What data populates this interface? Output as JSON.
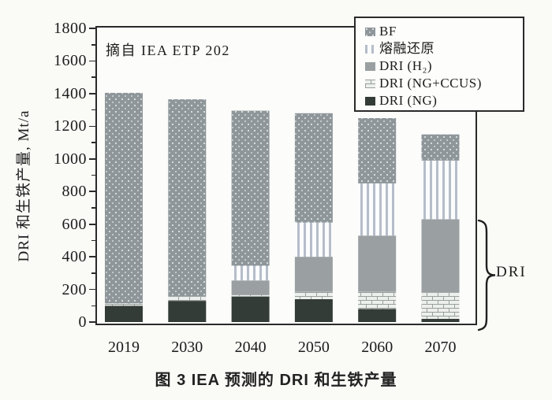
{
  "figure": {
    "source_note": "摘自 IEA ETP 202",
    "caption": "图 3  IEA 预测的 DRI 和生铁产量",
    "brace_label": "DRI"
  },
  "chart_data": {
    "type": "bar",
    "stacked": true,
    "title": "图 3  IEA 预测的 DRI 和生铁产量",
    "annotation": "摘自 IEA ETP 202",
    "xlabel": "",
    "ylabel": "DRI 和生铁产量, Mt/a",
    "ylim": [
      0,
      1800
    ],
    "ytick_step": 200,
    "ytick_minor_step": 100,
    "grid": false,
    "legend_position": "top-right",
    "categories": [
      "2019",
      "2030",
      "2040",
      "2050",
      "2060",
      "2070"
    ],
    "series": [
      {
        "name": "DRI (NG)",
        "key": "ng",
        "values": [
          100,
          130,
          155,
          140,
          80,
          20
        ]
      },
      {
        "name": "DRI (NG+CCUS)",
        "key": "ccus",
        "values": [
          15,
          25,
          10,
          45,
          105,
          160
        ]
      },
      {
        "name": "DRI (H₂)",
        "key": "h2",
        "values": [
          0,
          0,
          90,
          215,
          345,
          450
        ]
      },
      {
        "name": "熔融还原",
        "key": "smelt",
        "values": [
          0,
          0,
          90,
          210,
          320,
          360
        ]
      },
      {
        "name": "BF",
        "key": "bf",
        "values": [
          1290,
          1210,
          950,
          670,
          400,
          160
        ]
      }
    ],
    "totals": [
      1405,
      1365,
      1295,
      1280,
      1250,
      1150
    ],
    "legend": [
      {
        "label": "BF",
        "pattern": "bf"
      },
      {
        "label": "熔融还原",
        "pattern": "smelt"
      },
      {
        "label": "DRI (H₂)",
        "pattern": "h2"
      },
      {
        "label": "DRI (NG+CCUS)",
        "pattern": "ccus"
      },
      {
        "label": "DRI (NG)",
        "pattern": "ng"
      }
    ],
    "colors": {
      "bf_base": "#8e969a",
      "bf_dot": "#dde2e3",
      "smelt_stripe": "#b6bdc9",
      "smelt_bg": "#fbfcfd",
      "h2": "#9aa0a2",
      "ccus_bg": "#edefec",
      "ccus_line": "#98a09d",
      "ng": "#333c37",
      "axis": "#2a2a2a",
      "paper": "#fafaf7"
    }
  }
}
